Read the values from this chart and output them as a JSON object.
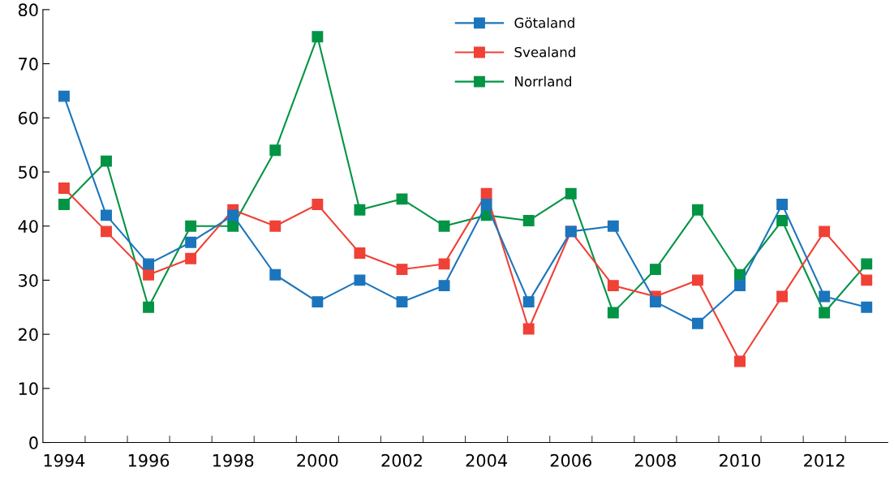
{
  "chart_data": {
    "type": "line",
    "x": [
      1994,
      1995,
      1996,
      1997,
      1998,
      1999,
      2000,
      2001,
      2002,
      2003,
      2004,
      2005,
      2006,
      2007,
      2008,
      2009,
      2010,
      2011,
      2012,
      2013
    ],
    "series": [
      {
        "name": "Götaland",
        "color": "#1b75bc",
        "values": [
          64,
          42,
          33,
          37,
          42,
          31,
          26,
          30,
          26,
          29,
          44,
          26,
          39,
          40,
          26,
          22,
          29,
          44,
          27,
          25
        ]
      },
      {
        "name": "Svealand",
        "color": "#ef4136",
        "values": [
          47,
          39,
          31,
          34,
          43,
          40,
          44,
          35,
          32,
          33,
          46,
          21,
          39,
          29,
          27,
          30,
          15,
          27,
          39,
          30
        ]
      },
      {
        "name": "Norrland",
        "color": "#009444",
        "values": [
          44,
          52,
          25,
          40,
          40,
          54,
          75,
          43,
          45,
          40,
          42,
          41,
          46,
          24,
          32,
          43,
          31,
          41,
          24,
          33
        ]
      }
    ],
    "xlim": [
      1993.5,
      2013.5
    ],
    "xticks": [
      1994,
      {
        "value": 1994.5,
        "label": null
      },
      1996,
      {
        "value": 1995.5,
        "label": null
      },
      {
        "value": 1996.5,
        "label": null
      },
      {
        "value": 1997.5,
        "label": null
      },
      1998,
      {
        "value": 1998.5,
        "label": null
      },
      {
        "value": 1999.5,
        "label": null
      },
      2000,
      {
        "value": 2000.5,
        "label": null
      },
      {
        "value": 2001.5,
        "label": null
      },
      2002,
      {
        "value": 2002.5,
        "label": null
      },
      {
        "value": 2003.5,
        "label": null
      },
      2004,
      {
        "value": 2004.5,
        "label": null
      },
      {
        "value": 2005.5,
        "label": null
      },
      2006,
      {
        "value": 2006.5,
        "label": null
      },
      {
        "value": 2007.5,
        "label": null
      },
      2008,
      {
        "value": 2008.5,
        "label": null
      },
      {
        "value": 2009.5,
        "label": null
      },
      2010,
      {
        "value": 2010.5,
        "label": null
      },
      {
        "value": 2011.5,
        "label": null
      },
      2012,
      {
        "value": 2012.5,
        "label": null
      }
    ],
    "ylim": [
      0,
      80
    ],
    "yticks": [
      0,
      10,
      20,
      30,
      40,
      50,
      60,
      70,
      80
    ],
    "grid": false,
    "legend": "top",
    "marker": "square",
    "line_style": "solid"
  }
}
